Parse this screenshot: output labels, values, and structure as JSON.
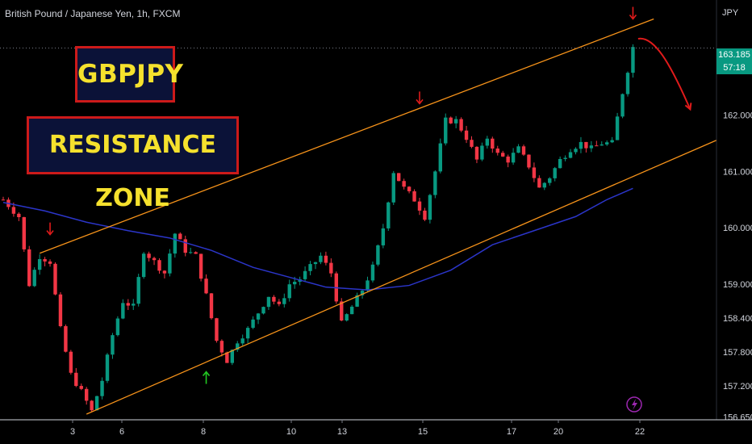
{
  "header": {
    "symbol": "British Pound / Japanese Yen, 1h, FXCM",
    "currency": "JPY"
  },
  "annotations": {
    "pair": "GBPJPY",
    "zone": "RESISTANCE ZONE"
  },
  "price_tag": {
    "price": "163.185",
    "countdown": "57:18"
  },
  "colors": {
    "background": "#000000",
    "bull_candle": "#089981",
    "bear_candle": "#f23645",
    "channel_line": "#f7931a",
    "moving_average": "#2b35c9",
    "arrow_down": "#e01b1b",
    "arrow_up": "#22c922",
    "forecast_curve": "#e01b1b",
    "text": "#d1d4dc"
  },
  "chart_data": {
    "type": "candlestick",
    "title": "British Pound / Japanese Yen, 1h, FXCM",
    "y_unit": "JPY",
    "ylim": [
      156.6,
      163.75
    ],
    "y_ticks": [
      {
        "value": 162.0,
        "label": "162.000"
      },
      {
        "value": 161.0,
        "label": "161.000"
      },
      {
        "value": 160.0,
        "label": "160.000"
      },
      {
        "value": 159.0,
        "label": "159.000"
      },
      {
        "value": 158.4,
        "label": "158.400"
      },
      {
        "value": 157.8,
        "label": "157.800"
      },
      {
        "value": 157.2,
        "label": "157.200"
      },
      {
        "value": 156.65,
        "label": "156.650"
      }
    ],
    "x_ticks": [
      "3",
      "6",
      "8",
      "10",
      "13",
      "15",
      "17",
      "20",
      "22"
    ],
    "last_price": 163.185,
    "close_path": [
      [
        0,
        160.5
      ],
      [
        3,
        160.2
      ],
      [
        5,
        159.0
      ],
      [
        7,
        159.5
      ],
      [
        9,
        159.4
      ],
      [
        11,
        158.2
      ],
      [
        13,
        157.4
      ],
      [
        15,
        157.1
      ],
      [
        17,
        156.75
      ],
      [
        19,
        157.3
      ],
      [
        21,
        158.1
      ],
      [
        23,
        158.7
      ],
      [
        25,
        158.6
      ],
      [
        27,
        159.6
      ],
      [
        29,
        159.4
      ],
      [
        31,
        159.2
      ],
      [
        33,
        159.9
      ],
      [
        35,
        159.6
      ],
      [
        37,
        159.5
      ],
      [
        39,
        158.8
      ],
      [
        41,
        158.0
      ],
      [
        43,
        157.65
      ],
      [
        45,
        158.0
      ],
      [
        47,
        158.2
      ],
      [
        49,
        158.5
      ],
      [
        51,
        158.8
      ],
      [
        53,
        158.6
      ],
      [
        55,
        159.0
      ],
      [
        57,
        159.1
      ],
      [
        59,
        159.3
      ],
      [
        61,
        159.5
      ],
      [
        63,
        159.2
      ],
      [
        65,
        158.3
      ],
      [
        67,
        158.6
      ],
      [
        69,
        158.9
      ],
      [
        71,
        159.3
      ],
      [
        73,
        160.0
      ],
      [
        75,
        161.0
      ],
      [
        77,
        160.7
      ],
      [
        79,
        160.5
      ],
      [
        81,
        160.2
      ],
      [
        83,
        161.0
      ],
      [
        85,
        161.9
      ],
      [
        87,
        161.9
      ],
      [
        89,
        161.6
      ],
      [
        91,
        161.2
      ],
      [
        93,
        161.6
      ],
      [
        95,
        161.3
      ],
      [
        97,
        161.2
      ],
      [
        99,
        161.4
      ],
      [
        101,
        161.1
      ],
      [
        103,
        160.7
      ],
      [
        105,
        160.9
      ],
      [
        107,
        161.2
      ],
      [
        109,
        161.4
      ],
      [
        111,
        161.5
      ],
      [
        113,
        161.4
      ],
      [
        115,
        161.5
      ],
      [
        117,
        161.5
      ],
      [
        119,
        162.4
      ],
      [
        121,
        163.2
      ]
    ],
    "moving_average": [
      [
        0,
        160.45
      ],
      [
        8,
        160.3
      ],
      [
        16,
        160.1
      ],
      [
        24,
        159.95
      ],
      [
        32,
        159.82
      ],
      [
        40,
        159.6
      ],
      [
        48,
        159.3
      ],
      [
        56,
        159.1
      ],
      [
        62,
        158.95
      ],
      [
        70,
        158.9
      ],
      [
        78,
        158.98
      ],
      [
        86,
        159.25
      ],
      [
        94,
        159.7
      ],
      [
        102,
        159.95
      ],
      [
        110,
        160.2
      ],
      [
        116,
        160.5
      ],
      [
        121,
        160.7
      ]
    ],
    "channel": {
      "upper": [
        [
          7,
          159.55
        ],
        [
          125,
          163.7
        ]
      ],
      "lower": [
        [
          16,
          156.7
        ],
        [
          137,
          161.55
        ]
      ]
    },
    "forecast": [
      [
        122,
        163.35
      ],
      [
        125,
        163.4
      ],
      [
        128,
        162.95
      ],
      [
        132,
        162.1
      ]
    ],
    "markers": [
      {
        "type": "arrow-down",
        "x": 9,
        "value": 159.98
      },
      {
        "type": "arrow-up",
        "x": 39,
        "value": 157.35
      },
      {
        "type": "arrow-down",
        "x": 80,
        "value": 162.3
      },
      {
        "type": "arrow-down",
        "x": 121,
        "value": 163.8
      }
    ]
  }
}
